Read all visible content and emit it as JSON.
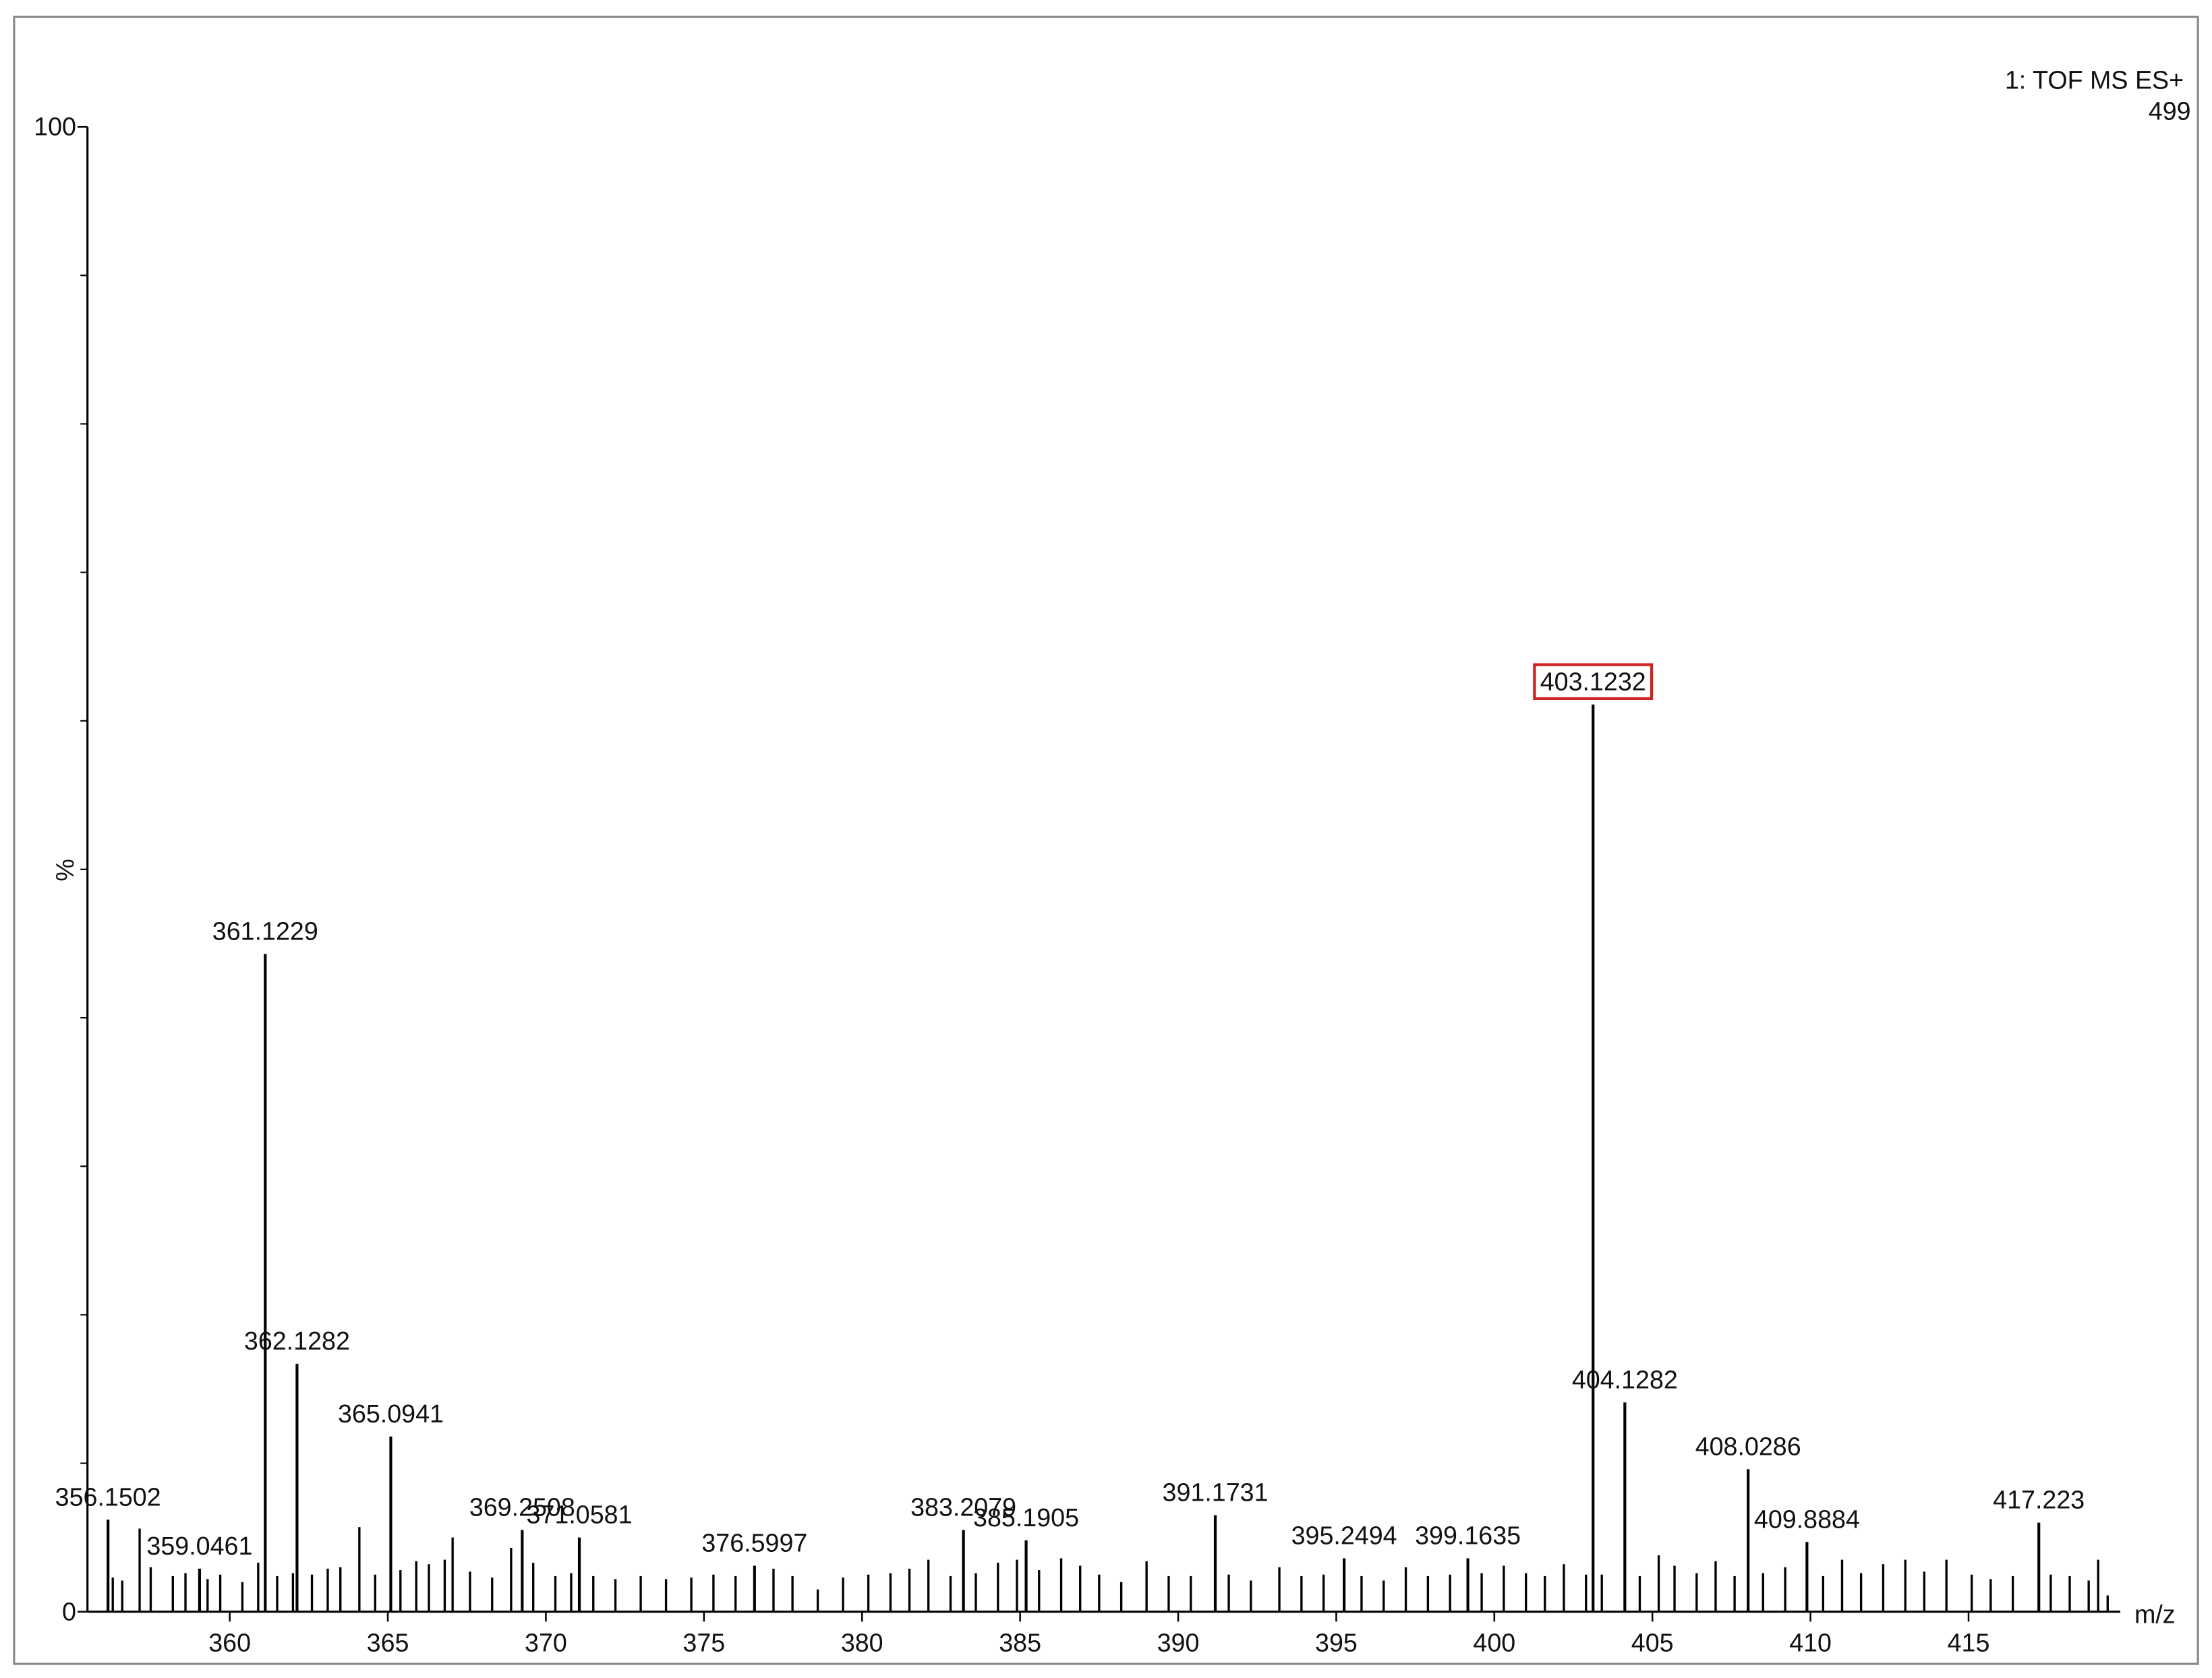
{
  "chart_data": {
    "type": "spectrum",
    "header": "1: TOF MS ES+",
    "header_value": "499",
    "xlabel": "m/z",
    "ylabel": "%",
    "color": "#000000",
    "highlight_color": "#d02020",
    "xlim": [
      355.5,
      419.8
    ],
    "xticks": [
      360,
      365,
      370,
      375,
      380,
      385,
      390,
      395,
      400,
      405,
      410,
      415
    ],
    "ylim": [
      0,
      100
    ],
    "yticks": [
      0,
      100
    ],
    "yminorticks": [
      10,
      20,
      30,
      40,
      50,
      60,
      70,
      80,
      90
    ],
    "x": [
      403.1232,
      361.1229,
      362.1282,
      365.0941,
      356.1502,
      359.0461,
      369.2508,
      371.0581,
      376.5997,
      383.2079,
      385.1905,
      391.1731,
      395.2494,
      399.1635,
      404.1282,
      408.0286,
      409.8884,
      417.223
    ],
    "values": [
      61.1,
      44.3,
      16.7,
      11.8,
      6.2,
      2.9,
      5.5,
      5.0,
      3.1,
      5.5,
      4.8,
      6.5,
      3.6,
      3.6,
      14.1,
      9.6,
      4.7,
      6.0
    ],
    "minor_x": [
      356.3,
      356.6,
      357.15,
      357.5,
      358.2,
      358.6,
      359.3,
      359.7,
      360.4,
      360.9,
      361.5,
      362.0,
      362.6,
      363.1,
      363.5,
      364.1,
      364.6,
      365.4,
      365.9,
      366.3,
      366.8,
      367.05,
      367.6,
      368.3,
      368.9,
      369.6,
      370.3,
      370.8,
      371.5,
      372.2,
      373.0,
      373.8,
      374.6,
      375.3,
      376.0,
      377.2,
      377.8,
      378.6,
      379.4,
      380.2,
      380.9,
      381.5,
      382.1,
      382.8,
      383.6,
      384.3,
      384.9,
      385.6,
      386.3,
      386.9,
      387.5,
      388.2,
      389.0,
      389.7,
      390.4,
      391.6,
      392.3,
      393.2,
      393.9,
      394.6,
      395.8,
      396.5,
      397.2,
      397.9,
      398.6,
      399.6,
      400.3,
      401.0,
      401.6,
      402.2,
      402.9,
      403.4,
      404.6,
      405.2,
      405.7,
      406.4,
      407.0,
      407.6,
      408.5,
      409.2,
      410.4,
      411.0,
      411.6,
      412.3,
      413.0,
      413.6,
      414.3,
      415.1,
      415.7,
      416.4,
      417.6,
      418.2,
      418.8,
      419.1,
      419.4
    ],
    "minor_values": [
      2.3,
      2.1,
      5.6,
      3.0,
      2.4,
      2.6,
      2.2,
      2.5,
      2.0,
      3.3,
      2.4,
      2.6,
      2.5,
      2.9,
      3.0,
      5.7,
      2.5,
      2.8,
      3.4,
      3.2,
      3.5,
      5.0,
      2.7,
      2.3,
      4.3,
      3.3,
      2.4,
      2.6,
      2.4,
      2.2,
      2.4,
      2.2,
      2.3,
      2.5,
      2.4,
      2.9,
      2.4,
      1.5,
      2.3,
      2.5,
      2.6,
      2.9,
      3.5,
      2.4,
      2.6,
      3.3,
      3.5,
      2.8,
      3.6,
      3.1,
      2.5,
      2.0,
      3.4,
      2.4,
      2.4,
      2.5,
      2.1,
      3.0,
      2.4,
      2.5,
      2.4,
      2.1,
      3.0,
      2.4,
      2.5,
      2.6,
      3.1,
      2.6,
      2.4,
      3.2,
      2.5,
      2.5,
      2.4,
      3.8,
      3.1,
      2.6,
      3.4,
      2.4,
      2.6,
      3.0,
      2.4,
      3.5,
      2.6,
      3.2,
      3.5,
      2.7,
      3.5,
      2.5,
      2.2,
      2.4,
      2.5,
      2.4,
      2.1,
      3.5,
      1.1
    ]
  }
}
